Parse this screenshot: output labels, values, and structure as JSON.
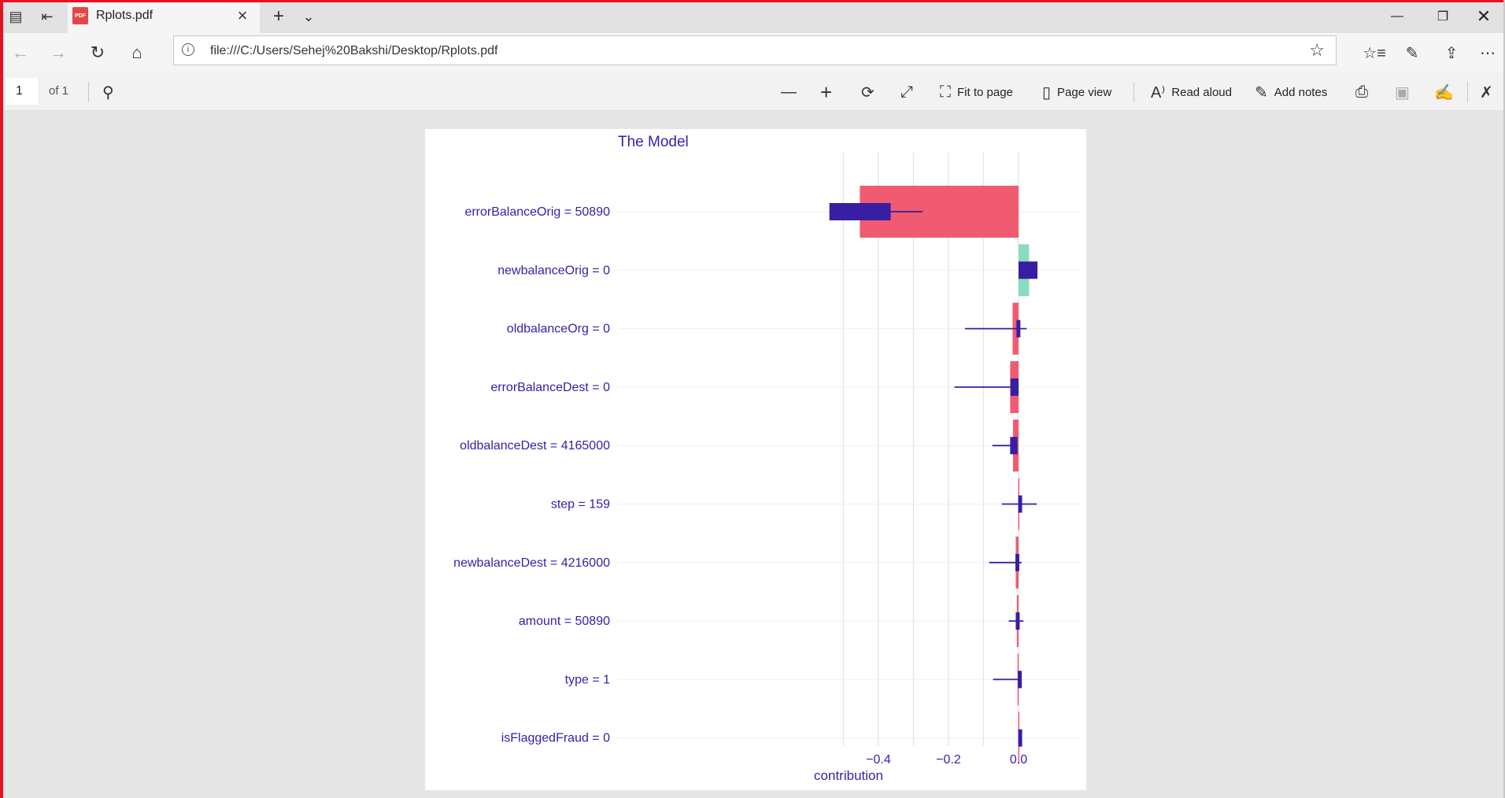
{
  "tab": {
    "title": "Rplots.pdf",
    "icon_label": "PDF"
  },
  "address": {
    "url": "file:///C:/Users/Sehej%20Bakshi/Desktop/Rplots.pdf"
  },
  "pdf_toolbar": {
    "page_number": "1",
    "page_of": "of 1",
    "fit_to_page": "Fit to page",
    "page_view": "Page view",
    "read_aloud": "Read aloud",
    "add_notes": "Add notes"
  },
  "icons": {
    "tab_actions": "tab-actions-icon",
    "set_aside": "set-aside-tabs-icon",
    "search": "search-icon",
    "zoom_out": "minus-icon",
    "zoom_in": "plus-icon",
    "rotate": "rotate-icon",
    "fullscreen": "expand-icon",
    "print": "print-icon",
    "save": "save-icon",
    "save_as": "save-as-icon",
    "pin": "pin-icon"
  },
  "colors": {
    "negative": "#f05b72",
    "positive": "#8bdcbe",
    "box": "#371ea3",
    "text": "#371ea3",
    "frame": "#e81123"
  },
  "chart_data": {
    "type": "bar",
    "title": "The Model",
    "xlabel": "contribution",
    "ylabel": "",
    "xlim": [
      -0.5,
      0.0
    ],
    "xticks": [
      -0.4,
      -0.2,
      0.0
    ],
    "xtick_labels": [
      "−0.4",
      "−0.2",
      "0.0"
    ],
    "grid": true,
    "categories": [
      "errorBalanceOrig = 50890",
      "newbalanceOrig = 0",
      "oldbalanceOrg = 0",
      "errorBalanceDest = 0",
      "oldbalanceDest = 4165000",
      "step = 159",
      "newbalanceDest = 4216000",
      "amount = 50890",
      "type = 1",
      "isFlaggedFraud = 0"
    ],
    "values": [
      -0.453,
      0.03,
      -0.017,
      -0.024,
      -0.016,
      -0.001,
      -0.008,
      -0.005,
      -0.003,
      -0.001
    ],
    "boxplots": [
      {
        "whisker_low": -0.54,
        "q1": -0.54,
        "q3": -0.365,
        "whisker_high": -0.273
      },
      {
        "whisker_low": 0.0,
        "q1": 0.0,
        "q3": 0.054,
        "whisker_high": 0.054
      },
      {
        "whisker_low": -0.153,
        "q1": -0.006,
        "q3": 0.005,
        "whisker_high": 0.023
      },
      {
        "whisker_low": -0.183,
        "q1": -0.023,
        "q3": 0.0,
        "whisker_high": 0.0
      },
      {
        "whisker_low": -0.075,
        "q1": -0.024,
        "q3": -0.003,
        "whisker_high": -0.003
      },
      {
        "whisker_low": -0.048,
        "q1": -0.001,
        "q3": 0.004,
        "whisker_high": 0.052
      },
      {
        "whisker_low": -0.084,
        "q1": -0.009,
        "q3": 0.001,
        "whisker_high": 0.009
      },
      {
        "whisker_low": -0.028,
        "q1": -0.008,
        "q3": 0.001,
        "whisker_high": 0.014
      },
      {
        "whisker_low": -0.073,
        "q1": -0.002,
        "q3": 0.002,
        "whisker_high": 0.002
      },
      {
        "whisker_low": -0.001,
        "q1": -0.001,
        "q3": 0.001,
        "whisker_high": 0.001
      }
    ]
  }
}
